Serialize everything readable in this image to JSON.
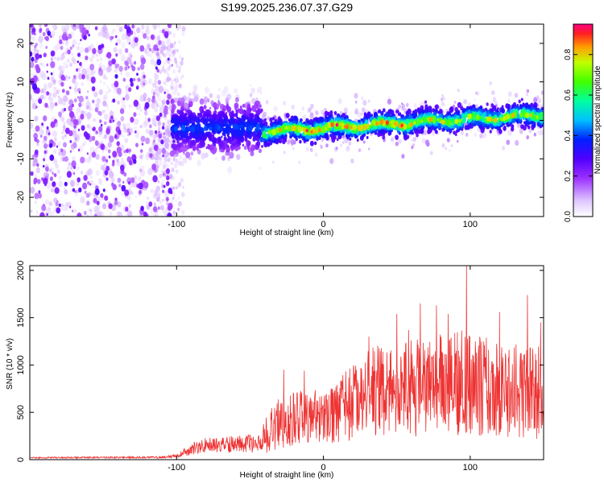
{
  "title": "S199.2025.236.07.37.G29",
  "colors": {
    "snr_line": "#ee3333",
    "axis": "#000000",
    "background": "#ffffff"
  },
  "chart_data": [
    {
      "type": "heatmap",
      "panel": "spectrogram",
      "xlabel": "Height of straight line (km)",
      "ylabel": "Frequency (Hz)",
      "xlim": [
        -200,
        150
      ],
      "ylim": [
        -25,
        25
      ],
      "x_ticks": [
        -100,
        0,
        100
      ],
      "x_tick_labels": [
        "-100",
        "0",
        "100"
      ],
      "y_ticks": [
        -20,
        -10,
        0,
        10,
        20
      ],
      "y_tick_labels": [
        "-20",
        "-10",
        "0",
        "10",
        "20"
      ],
      "colorbar": {
        "label": "Normalized spectral amplitude",
        "range": [
          0,
          0.95
        ],
        "ticks": [
          0.0,
          0.2,
          0.4,
          0.6,
          0.8
        ],
        "tick_labels": [
          "0.0",
          "0.2",
          "0.4",
          "0.6",
          "0.8"
        ],
        "stops": [
          [
            0.0,
            "#ffffff"
          ],
          [
            0.08,
            "#e0c8ff"
          ],
          [
            0.2,
            "#9b30ff"
          ],
          [
            0.3,
            "#5000ff"
          ],
          [
            0.4,
            "#0020ff"
          ],
          [
            0.5,
            "#00c0ff"
          ],
          [
            0.6,
            "#00ffa0"
          ],
          [
            0.7,
            "#40ff00"
          ],
          [
            0.8,
            "#c0ff00"
          ],
          [
            0.88,
            "#ffa000"
          ],
          [
            0.95,
            "#ff2020"
          ],
          [
            1.0,
            "#ff0080"
          ]
        ]
      },
      "regions": [
        {
          "x_range": [
            -200,
            -103
          ],
          "description_level": "scattered noise, full band",
          "amplitude": 0.15
        },
        {
          "x_range": [
            -103,
            -42
          ],
          "center_hz": -2,
          "spread_hz": 7,
          "amplitude": 0.3
        },
        {
          "x_range": [
            -42,
            150
          ],
          "center_hz_start": -3,
          "center_hz_end": 1.5,
          "spread_hz": 1.5,
          "amplitude": 0.6
        }
      ]
    },
    {
      "type": "line",
      "panel": "snr",
      "xlabel": "Height of straight line (km)",
      "ylabel": "SNR (10 * v/v)",
      "xlim": [
        -200,
        150
      ],
      "ylim": [
        0,
        2050
      ],
      "x_ticks": [
        -100,
        0,
        100
      ],
      "x_tick_labels": [
        "-100",
        "0",
        "100"
      ],
      "y_ticks": [
        0,
        500,
        1000,
        1500,
        2000
      ],
      "y_tick_labels": [
        "0",
        "500",
        "1000",
        "1500",
        "2000"
      ],
      "series": [
        {
          "name": "SNR",
          "envelope_x": [
            -200,
            -110,
            -100,
            -90,
            -80,
            -70,
            -60,
            -50,
            -45,
            -40,
            -35,
            -30,
            -20,
            -10,
            0,
            10,
            20,
            30,
            40,
            50,
            60,
            70,
            80,
            90,
            100,
            110,
            120,
            130,
            140,
            150
          ],
          "envelope_mean": [
            20,
            25,
            40,
            110,
            150,
            160,
            160,
            170,
            150,
            250,
            330,
            380,
            430,
            470,
            420,
            520,
            620,
            700,
            740,
            760,
            760,
            770,
            790,
            810,
            820,
            780,
            760,
            740,
            720,
            700
          ],
          "envelope_amplitude": [
            8,
            12,
            20,
            70,
            90,
            90,
            100,
            110,
            80,
            200,
            280,
            300,
            320,
            340,
            300,
            380,
            460,
            520,
            560,
            560,
            580,
            580,
            600,
            620,
            650,
            600,
            580,
            560,
            560,
            540
          ],
          "peaks": [
            [
              97.5,
              2050
            ],
            [
              31,
              1300
            ],
            [
              50,
              1540
            ],
            [
              58,
              1370
            ],
            [
              66,
              1650
            ],
            [
              77,
              1630
            ],
            [
              85,
              1540
            ],
            [
              120,
              1560
            ],
            [
              139,
              1740
            ],
            [
              148,
              1450
            ],
            [
              -27,
              950
            ],
            [
              -13,
              940
            ]
          ]
        }
      ]
    }
  ]
}
